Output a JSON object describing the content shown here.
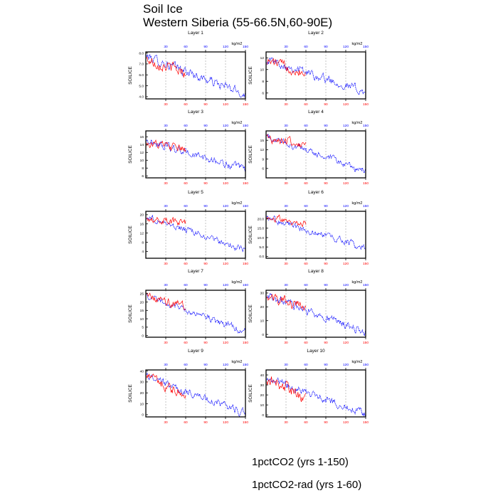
{
  "figure": {
    "title_line1": "Soil Ice",
    "title_line2": "Western Siberia (55-66.5N,60-90E)"
  },
  "legend": [
    {
      "label": "1pctCO2 (yrs 1-150)",
      "color": "#0000ff",
      "style": "dashed"
    },
    {
      "label": "1pctCO2-rad (yrs 1-60)",
      "color": "#ff0000",
      "style": "solid"
    }
  ],
  "chart_data": [
    {
      "type": "line",
      "title": "Layer 1",
      "ylabel": "SOILICE",
      "units": "kg/m2",
      "xlim": [
        0,
        150
      ],
      "ylim": [
        3.8,
        8.1
      ],
      "yticks": [
        "4.0",
        "5.0",
        "6.0",
        "7.0",
        "8.0"
      ],
      "ytick_values": [
        4,
        5,
        6,
        7,
        8
      ],
      "xticks_top": [
        "30",
        "60",
        "90",
        "120",
        "150"
      ],
      "xticks_bottom": [
        "30",
        "60",
        "90",
        "120",
        "150"
      ],
      "grid_x": [
        30,
        60,
        90,
        120
      ],
      "series": [
        {
          "name": "1pctCO2 (yrs 1-150)",
          "x_end": 150,
          "start": 7.7,
          "end": 4.2,
          "noise": 0.35
        },
        {
          "name": "1pctCO2-rad (yrs 1-60)",
          "x_end": 60,
          "start": 7.4,
          "end": 6.2,
          "noise": 0.4
        }
      ]
    },
    {
      "type": "line",
      "title": "Layer 2",
      "ylabel": "SOILICE",
      "units": "kg/m2",
      "xlim": [
        0,
        150
      ],
      "ylim": [
        5,
        13
      ],
      "yticks": [
        "6",
        "8",
        "10",
        "12"
      ],
      "ytick_values": [
        6,
        8,
        10,
        12
      ],
      "xticks_top": [
        "30",
        "60",
        "90",
        "120",
        "150"
      ],
      "xticks_bottom": [
        "30",
        "60",
        "90",
        "120",
        "150"
      ],
      "grid_x": [
        30,
        60,
        90,
        120
      ],
      "series": [
        {
          "name": "1pctCO2 (yrs 1-150)",
          "x_end": 150,
          "start": 11.8,
          "end": 6.2,
          "noise": 0.6
        },
        {
          "name": "1pctCO2-rad (yrs 1-60)",
          "x_end": 60,
          "start": 11.5,
          "end": 9.5,
          "noise": 0.7
        }
      ]
    },
    {
      "type": "line",
      "title": "Layer 3",
      "ylabel": "SOILICE",
      "units": "kg/m2",
      "xlim": [
        0,
        150
      ],
      "ylim": [
        5.5,
        17.5
      ],
      "yticks": [
        "6",
        "8",
        "10",
        "12",
        "14",
        "16"
      ],
      "ytick_values": [
        6,
        8,
        10,
        12,
        14,
        16
      ],
      "xticks_top": [
        "30",
        "60",
        "90",
        "120",
        "150"
      ],
      "xticks_bottom": [
        "30",
        "60",
        "90",
        "120",
        "150"
      ],
      "grid_x": [
        30,
        60,
        90,
        120
      ],
      "series": [
        {
          "name": "1pctCO2 (yrs 1-150)",
          "x_end": 150,
          "start": 15,
          "end": 7.5,
          "noise": 0.8
        },
        {
          "name": "1pctCO2-rad (yrs 1-60)",
          "x_end": 60,
          "start": 14.6,
          "end": 12.5,
          "noise": 0.9
        }
      ]
    },
    {
      "type": "line",
      "title": "Layer 4",
      "ylabel": "SOILICE",
      "units": "kg/m2",
      "xlim": [
        0,
        150
      ],
      "ylim": [
        3,
        18
      ],
      "yticks": [
        "6",
        "9",
        "12",
        "15"
      ],
      "ytick_values": [
        6,
        9,
        12,
        15
      ],
      "xticks_top": [
        "30",
        "60",
        "90",
        "120",
        "150"
      ],
      "xticks_bottom": [
        "30",
        "60",
        "90",
        "120",
        "150"
      ],
      "grid_x": [
        30,
        60,
        90,
        120
      ],
      "series": [
        {
          "name": "1pctCO2 (yrs 1-150)",
          "x_end": 150,
          "start": 16.2,
          "end": 5,
          "noise": 0.9
        },
        {
          "name": "1pctCO2-rad (yrs 1-60)",
          "x_end": 60,
          "start": 15.8,
          "end": 13.5,
          "noise": 1.1
        }
      ]
    },
    {
      "type": "line",
      "title": "Layer 5",
      "ylabel": "SOILICE",
      "units": "kg/m2",
      "xlim": [
        0,
        150
      ],
      "ylim": [
        1,
        21.5
      ],
      "yticks": [
        "4",
        "8",
        "12",
        "16",
        "20"
      ],
      "ytick_values": [
        4,
        8,
        12,
        16,
        20
      ],
      "xticks_top": [
        "30",
        "60",
        "90",
        "120",
        "150"
      ],
      "xticks_bottom": [
        "30",
        "60",
        "90",
        "120",
        "150"
      ],
      "grid_x": [
        30,
        60,
        90,
        120
      ],
      "series": [
        {
          "name": "1pctCO2 (yrs 1-150)",
          "x_end": 150,
          "start": 19.2,
          "end": 4.5,
          "noise": 1.1
        },
        {
          "name": "1pctCO2-rad (yrs 1-60)",
          "x_end": 60,
          "start": 19,
          "end": 16,
          "noise": 1.3
        }
      ]
    },
    {
      "type": "line",
      "title": "Layer 6",
      "ylabel": "SOILICE",
      "units": "kg/m2",
      "xlim": [
        0,
        150
      ],
      "ylim": [
        -1,
        24
      ],
      "yticks": [
        "0.0",
        "5.0",
        "10.0",
        "15.0",
        "20.0"
      ],
      "ytick_values": [
        0,
        5,
        10,
        15,
        20
      ],
      "xticks_top": [
        "30",
        "60",
        "90",
        "120",
        "150"
      ],
      "xticks_bottom": [
        "30",
        "60",
        "90",
        "120",
        "150"
      ],
      "grid_x": [
        30,
        60,
        90,
        120
      ],
      "series": [
        {
          "name": "1pctCO2 (yrs 1-150)",
          "x_end": 150,
          "start": 20.5,
          "end": 4.5,
          "noise": 1.5
        },
        {
          "name": "1pctCO2-rad (yrs 1-60)",
          "x_end": 60,
          "start": 20.5,
          "end": 17.5,
          "noise": 1.5
        }
      ]
    },
    {
      "type": "line",
      "title": "Layer 7",
      "ylabel": "SOILICE",
      "units": "kg/m2",
      "xlim": [
        0,
        150
      ],
      "ylim": [
        -1,
        27
      ],
      "yticks": [
        "0",
        "5",
        "10",
        "15",
        "20",
        "25"
      ],
      "ytick_values": [
        0,
        5,
        10,
        15,
        20,
        25
      ],
      "xticks_top": [
        "30",
        "60",
        "90",
        "120",
        "150"
      ],
      "xticks_bottom": [
        "30",
        "60",
        "90",
        "120",
        "150"
      ],
      "grid_x": [
        30,
        60,
        90,
        120
      ],
      "series": [
        {
          "name": "1pctCO2 (yrs 1-150)",
          "x_end": 150,
          "start": 23.5,
          "end": 2.5,
          "noise": 1.6
        },
        {
          "name": "1pctCO2-rad (yrs 1-60)",
          "x_end": 60,
          "start": 23,
          "end": 18,
          "noise": 1.8
        }
      ]
    },
    {
      "type": "line",
      "title": "Layer 8",
      "ylabel": "SOILICE",
      "units": "kg/m2",
      "xlim": [
        0,
        150
      ],
      "ylim": [
        -2,
        32
      ],
      "yticks": [
        "0",
        "10",
        "20",
        "30"
      ],
      "ytick_values": [
        0,
        10,
        20,
        30
      ],
      "xticks_top": [
        "30",
        "60",
        "90",
        "120",
        "150"
      ],
      "xticks_bottom": [
        "30",
        "60",
        "90",
        "120",
        "150"
      ],
      "grid_x": [
        30,
        60,
        90,
        120
      ],
      "series": [
        {
          "name": "1pctCO2 (yrs 1-150)",
          "x_end": 150,
          "start": 28,
          "end": 1.5,
          "noise": 2.5
        },
        {
          "name": "1pctCO2-rad (yrs 1-60)",
          "x_end": 60,
          "start": 27,
          "end": 20,
          "noise": 3
        }
      ]
    },
    {
      "type": "line",
      "title": "Layer 9",
      "ylabel": "SOILICE",
      "units": "kg/m2",
      "xlim": [
        0,
        150
      ],
      "ylim": [
        -2,
        41
      ],
      "yticks": [
        "0",
        "10",
        "20",
        "30",
        "40"
      ],
      "ytick_values": [
        0,
        10,
        20,
        30,
        40
      ],
      "xticks_top": [
        "30",
        "60",
        "90",
        "120",
        "150"
      ],
      "xticks_bottom": [
        "30",
        "60",
        "90",
        "120",
        "150"
      ],
      "grid_x": [
        30,
        60,
        90,
        120
      ],
      "series": [
        {
          "name": "1pctCO2 (yrs 1-150)",
          "x_end": 150,
          "start": 35,
          "end": 1,
          "noise": 3
        },
        {
          "name": "1pctCO2-rad (yrs 1-60)",
          "x_end": 60,
          "start": 34,
          "end": 20,
          "noise": 4
        }
      ]
    },
    {
      "type": "line",
      "title": "Layer 10",
      "ylabel": "SOILICE",
      "units": "kg/m2",
      "xlim": [
        0,
        150
      ],
      "ylim": [
        -2,
        45
      ],
      "yticks": [
        "0",
        "10",
        "20",
        "30",
        "40"
      ],
      "ytick_values": [
        0,
        10,
        20,
        30,
        40
      ],
      "xticks_top": [
        "30",
        "60",
        "90",
        "120",
        "150"
      ],
      "xticks_bottom": [
        "30",
        "60",
        "90",
        "120",
        "150"
      ],
      "grid_x": [
        30,
        60,
        90,
        120
      ],
      "series": [
        {
          "name": "1pctCO2 (yrs 1-150)",
          "x_end": 150,
          "start": 37,
          "end": 1,
          "noise": 3
        },
        {
          "name": "1pctCO2-rad (yrs 1-60)",
          "x_end": 60,
          "start": 37,
          "end": 18,
          "noise": 5
        }
      ]
    }
  ]
}
